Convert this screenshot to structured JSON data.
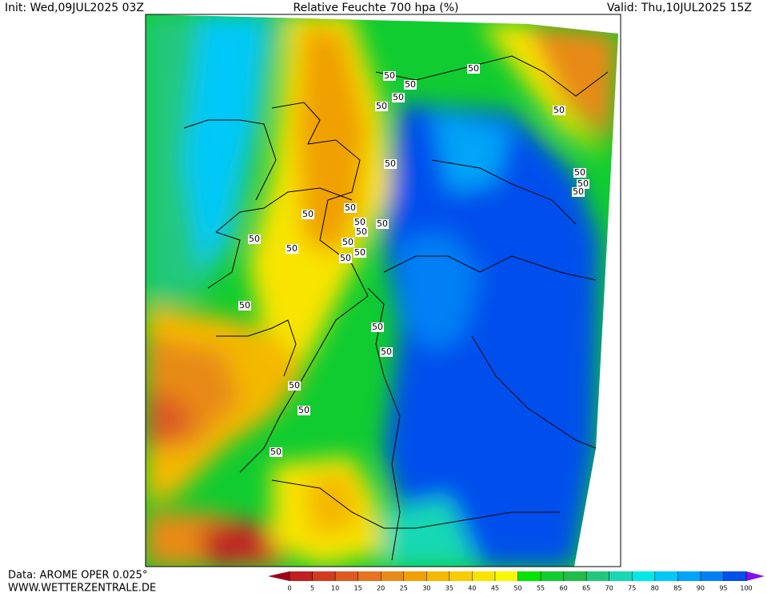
{
  "header": {
    "init": "Init: Wed,09JUL2025 03Z",
    "title": "Relative Feuchte 700 hpa (%)",
    "valid": "Valid: Thu,10JUL2025 15Z"
  },
  "footer": {
    "source": "Data: AROME OPER 0.025°",
    "website": "WWW.WETTERZENTRALE.DE"
  },
  "contour_labels": [
    "50",
    "50",
    "50",
    "50",
    "50",
    "50",
    "50",
    "50",
    "50",
    "50",
    "50",
    "50",
    "50",
    "50",
    "50",
    "50",
    "50",
    "50",
    "50",
    "50",
    "50",
    "50",
    "50",
    "50",
    "50",
    "50"
  ],
  "colorbar": {
    "ticks": [
      0,
      5,
      10,
      15,
      20,
      25,
      30,
      35,
      40,
      45,
      50,
      55,
      60,
      65,
      70,
      75,
      80,
      85,
      90,
      95,
      100
    ],
    "colors": [
      "#a00018",
      "#c02020",
      "#d03c20",
      "#dc5a20",
      "#e47420",
      "#e88a18",
      "#f0a000",
      "#f4b800",
      "#f8cc00",
      "#f8e400",
      "#f8f800",
      "#00e400",
      "#10cc30",
      "#20bc48",
      "#20c87c",
      "#18d8b4",
      "#00e8e8",
      "#00c8f8",
      "#00a4f8",
      "#0080f4",
      "#0050ec",
      "#8010f0"
    ]
  }
}
